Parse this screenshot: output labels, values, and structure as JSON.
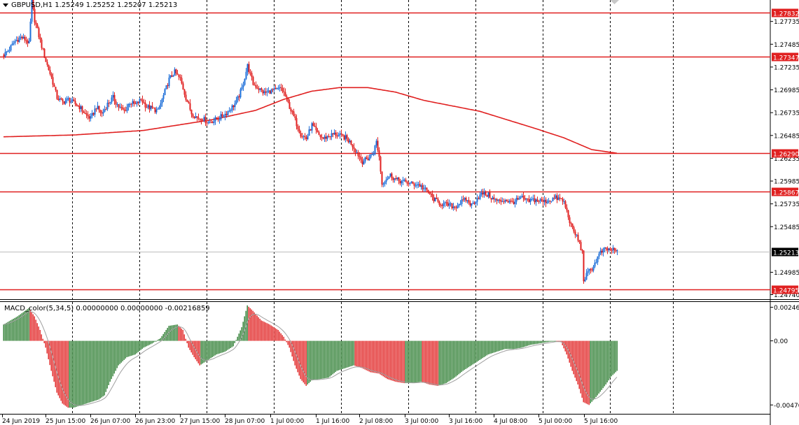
{
  "chart_data": [
    {
      "type": "candlestick",
      "title": "GBPUSD,H1  1.25249 1.25252 1.25207 1.25213",
      "y_ticks": [
        "1.27735",
        "1.27485",
        "1.27235",
        "1.26985",
        "1.26735",
        "1.26485",
        "1.26235",
        "1.25985",
        "1.25735",
        "1.25485",
        "1.24985",
        "1.24740"
      ],
      "ylim": [
        1.2469,
        1.2797
      ],
      "x_ticks": [
        "24 Jun 2019",
        "25 Jun 15:00",
        "26 Jun 07:00",
        "26 Jun 23:00",
        "27 Jun 15:00",
        "28 Jun 07:00",
        "1 Jul 00:00",
        "1 Jul 16:00",
        "2 Jul 08:00",
        "3 Jul 00:00",
        "3 Jul 16:00",
        "4 Jul 08:00",
        "5 Jul 00:00",
        "5 Jul 16:00"
      ],
      "horizontal_levels": [
        "1.27832",
        "1.27347",
        "1.26290",
        "1.25867",
        "1.24795"
      ],
      "current_price": "1.25213",
      "close_path": [
        [
          0,
          1.2737
        ],
        [
          4,
          1.2743
        ],
        [
          8,
          1.2752
        ],
        [
          12,
          1.2756
        ],
        [
          16,
          1.2753
        ],
        [
          18,
          1.2749
        ],
        [
          20,
          1.2795
        ],
        [
          22,
          1.2775
        ],
        [
          26,
          1.2752
        ],
        [
          30,
          1.273
        ],
        [
          34,
          1.2712
        ],
        [
          38,
          1.269
        ],
        [
          42,
          1.2685
        ],
        [
          46,
          1.2688
        ],
        [
          50,
          1.2684
        ],
        [
          54,
          1.268
        ],
        [
          58,
          1.2672
        ],
        [
          62,
          1.2667
        ],
        [
          66,
          1.268
        ],
        [
          70,
          1.2672
        ],
        [
          74,
          1.2683
        ],
        [
          78,
          1.269
        ],
        [
          82,
          1.268
        ],
        [
          86,
          1.2675
        ],
        [
          90,
          1.2685
        ],
        [
          94,
          1.2682
        ],
        [
          98,
          1.2688
        ],
        [
          102,
          1.268
        ],
        [
          106,
          1.2678
        ],
        [
          110,
          1.2675
        ],
        [
          114,
          1.2692
        ],
        [
          118,
          1.271
        ],
        [
          122,
          1.2718
        ],
        [
          126,
          1.271
        ],
        [
          130,
          1.269
        ],
        [
          134,
          1.2673
        ],
        [
          138,
          1.2668
        ],
        [
          142,
          1.2667
        ],
        [
          146,
          1.2663
        ],
        [
          150,
          1.2665
        ],
        [
          154,
          1.2668
        ],
        [
          158,
          1.2672
        ],
        [
          162,
          1.2678
        ],
        [
          166,
          1.2685
        ],
        [
          170,
          1.27
        ],
        [
          174,
          1.2725
        ],
        [
          178,
          1.2705
        ],
        [
          182,
          1.27
        ],
        [
          186,
          1.2695
        ],
        [
          190,
          1.2697
        ],
        [
          194,
          1.2698
        ],
        [
          198,
          1.27
        ],
        [
          200,
          1.2695
        ],
        [
          204,
          1.268
        ],
        [
          208,
          1.2665
        ],
        [
          212,
          1.265
        ],
        [
          216,
          1.2645
        ],
        [
          220,
          1.266
        ],
        [
          224,
          1.265
        ],
        [
          228,
          1.2645
        ],
        [
          232,
          1.2648
        ],
        [
          236,
          1.265
        ],
        [
          240,
          1.2648
        ],
        [
          244,
          1.2646
        ],
        [
          248,
          1.264
        ],
        [
          252,
          1.263
        ],
        [
          256,
          1.262
        ],
        [
          260,
          1.2623
        ],
        [
          264,
          1.263
        ],
        [
          266,
          1.2642
        ],
        [
          268,
          1.2625
        ],
        [
          270,
          1.2595
        ],
        [
          272,
          1.26
        ],
        [
          276,
          1.2605
        ],
        [
          280,
          1.26
        ],
        [
          284,
          1.2598
        ],
        [
          288,
          1.2597
        ],
        [
          292,
          1.2595
        ],
        [
          296,
          1.2595
        ],
        [
          300,
          1.259
        ],
        [
          304,
          1.2585
        ],
        [
          306,
          1.258
        ],
        [
          310,
          1.2575
        ],
        [
          314,
          1.2573
        ],
        [
          318,
          1.2572
        ],
        [
          322,
          1.257
        ],
        [
          326,
          1.2575
        ],
        [
          330,
          1.2578
        ],
        [
          334,
          1.2572
        ],
        [
          338,
          1.258
        ],
        [
          342,
          1.2585
        ],
        [
          346,
          1.2583
        ],
        [
          350,
          1.2578
        ],
        [
          354,
          1.2576
        ],
        [
          358,
          1.2578
        ],
        [
          362,
          1.2575
        ],
        [
          366,
          1.2577
        ],
        [
          370,
          1.258
        ],
        [
          374,
          1.2576
        ],
        [
          378,
          1.2578
        ],
        [
          382,
          1.2577
        ],
        [
          386,
          1.2576
        ],
        [
          390,
          1.2578
        ],
        [
          394,
          1.258
        ],
        [
          398,
          1.2578
        ],
        [
          400,
          1.2575
        ],
        [
          403,
          1.256
        ],
        [
          406,
          1.2545
        ],
        [
          409,
          1.2538
        ],
        [
          411,
          1.253
        ],
        [
          413,
          1.252
        ],
        [
          414,
          1.249
        ],
        [
          416,
          1.2495
        ],
        [
          418,
          1.25
        ],
        [
          420,
          1.2503
        ],
        [
          422,
          1.2508
        ],
        [
          424,
          1.2515
        ],
        [
          426,
          1.252
        ],
        [
          428,
          1.2522
        ],
        [
          430,
          1.2524
        ],
        [
          432,
          1.2523
        ],
        [
          434,
          1.2523
        ],
        [
          436,
          1.2522
        ],
        [
          438,
          1.2521
        ]
      ],
      "ma_path": [
        [
          0,
          1.2647
        ],
        [
          50,
          1.2649
        ],
        [
          100,
          1.2654
        ],
        [
          150,
          1.2666
        ],
        [
          180,
          1.2676
        ],
        [
          200,
          1.2688
        ],
        [
          220,
          1.2697
        ],
        [
          240,
          1.2701
        ],
        [
          260,
          1.2701
        ],
        [
          280,
          1.2696
        ],
        [
          300,
          1.2687
        ],
        [
          340,
          1.2675
        ],
        [
          380,
          1.2656
        ],
        [
          400,
          1.2646
        ],
        [
          420,
          1.2633
        ],
        [
          438,
          1.2629
        ]
      ]
    },
    {
      "type": "bar",
      "title": "MACD_color(5,34,5) 0.00000000 0.00000000 -0.00216859",
      "y_ticks": [
        "0.002461",
        "0.00",
        "-0.00470"
      ],
      "ylim": [
        -0.00535,
        0.00285
      ],
      "value_path": [
        [
          0,
          0.0012
        ],
        [
          10,
          0.0018
        ],
        [
          18,
          0.0024
        ],
        [
          22,
          0.0018
        ],
        [
          26,
          0.0008
        ],
        [
          30,
          -0.0005
        ],
        [
          34,
          -0.0022
        ],
        [
          38,
          -0.0038
        ],
        [
          42,
          -0.0046
        ],
        [
          46,
          -0.0049
        ],
        [
          50,
          -0.0049
        ],
        [
          56,
          -0.0047
        ],
        [
          62,
          -0.0045
        ],
        [
          68,
          -0.0043
        ],
        [
          72,
          -0.004
        ],
        [
          76,
          -0.003
        ],
        [
          82,
          -0.0018
        ],
        [
          88,
          -0.0012
        ],
        [
          94,
          -0.001
        ],
        [
          100,
          -0.0005
        ],
        [
          106,
          -0.0002
        ],
        [
          112,
          0.0002
        ],
        [
          118,
          0.0011
        ],
        [
          124,
          0.0012
        ],
        [
          128,
          0.0008
        ],
        [
          132,
          -0.0005
        ],
        [
          136,
          -0.0012
        ],
        [
          140,
          -0.0018
        ],
        [
          146,
          -0.0014
        ],
        [
          152,
          -0.001
        ],
        [
          158,
          -0.0008
        ],
        [
          164,
          -0.0004
        ],
        [
          170,
          0.001
        ],
        [
          174,
          0.0026
        ],
        [
          178,
          0.0022
        ],
        [
          184,
          0.0015
        ],
        [
          190,
          0.0012
        ],
        [
          196,
          0.0008
        ],
        [
          200,
          0.0003
        ],
        [
          204,
          -0.0005
        ],
        [
          208,
          -0.0018
        ],
        [
          212,
          -0.0028
        ],
        [
          216,
          -0.0033
        ],
        [
          220,
          -0.0029
        ],
        [
          226,
          -0.0028
        ],
        [
          232,
          -0.0027
        ],
        [
          238,
          -0.0022
        ],
        [
          244,
          -0.002
        ],
        [
          250,
          -0.0018
        ],
        [
          256,
          -0.002
        ],
        [
          262,
          -0.0023
        ],
        [
          268,
          -0.0024
        ],
        [
          274,
          -0.0028
        ],
        [
          280,
          -0.003
        ],
        [
          286,
          -0.0031
        ],
        [
          292,
          -0.0031
        ],
        [
          298,
          -0.003
        ],
        [
          304,
          -0.0032
        ],
        [
          310,
          -0.0033
        ],
        [
          316,
          -0.0031
        ],
        [
          322,
          -0.0027
        ],
        [
          328,
          -0.0022
        ],
        [
          334,
          -0.0018
        ],
        [
          340,
          -0.0014
        ],
        [
          346,
          -0.001
        ],
        [
          352,
          -0.0008
        ],
        [
          358,
          -0.0006
        ],
        [
          364,
          -0.0006
        ],
        [
          370,
          -0.0005
        ],
        [
          376,
          -0.0003
        ],
        [
          382,
          -0.0002
        ],
        [
          388,
          -0.0001
        ],
        [
          394,
          0.0
        ],
        [
          398,
          -0.0001
        ],
        [
          402,
          -0.001
        ],
        [
          406,
          -0.0022
        ],
        [
          410,
          -0.0032
        ],
        [
          414,
          -0.0045
        ],
        [
          418,
          -0.0047
        ],
        [
          424,
          -0.004
        ],
        [
          430,
          -0.0032
        ],
        [
          434,
          -0.0026
        ],
        [
          438,
          -0.0022
        ]
      ]
    }
  ]
}
